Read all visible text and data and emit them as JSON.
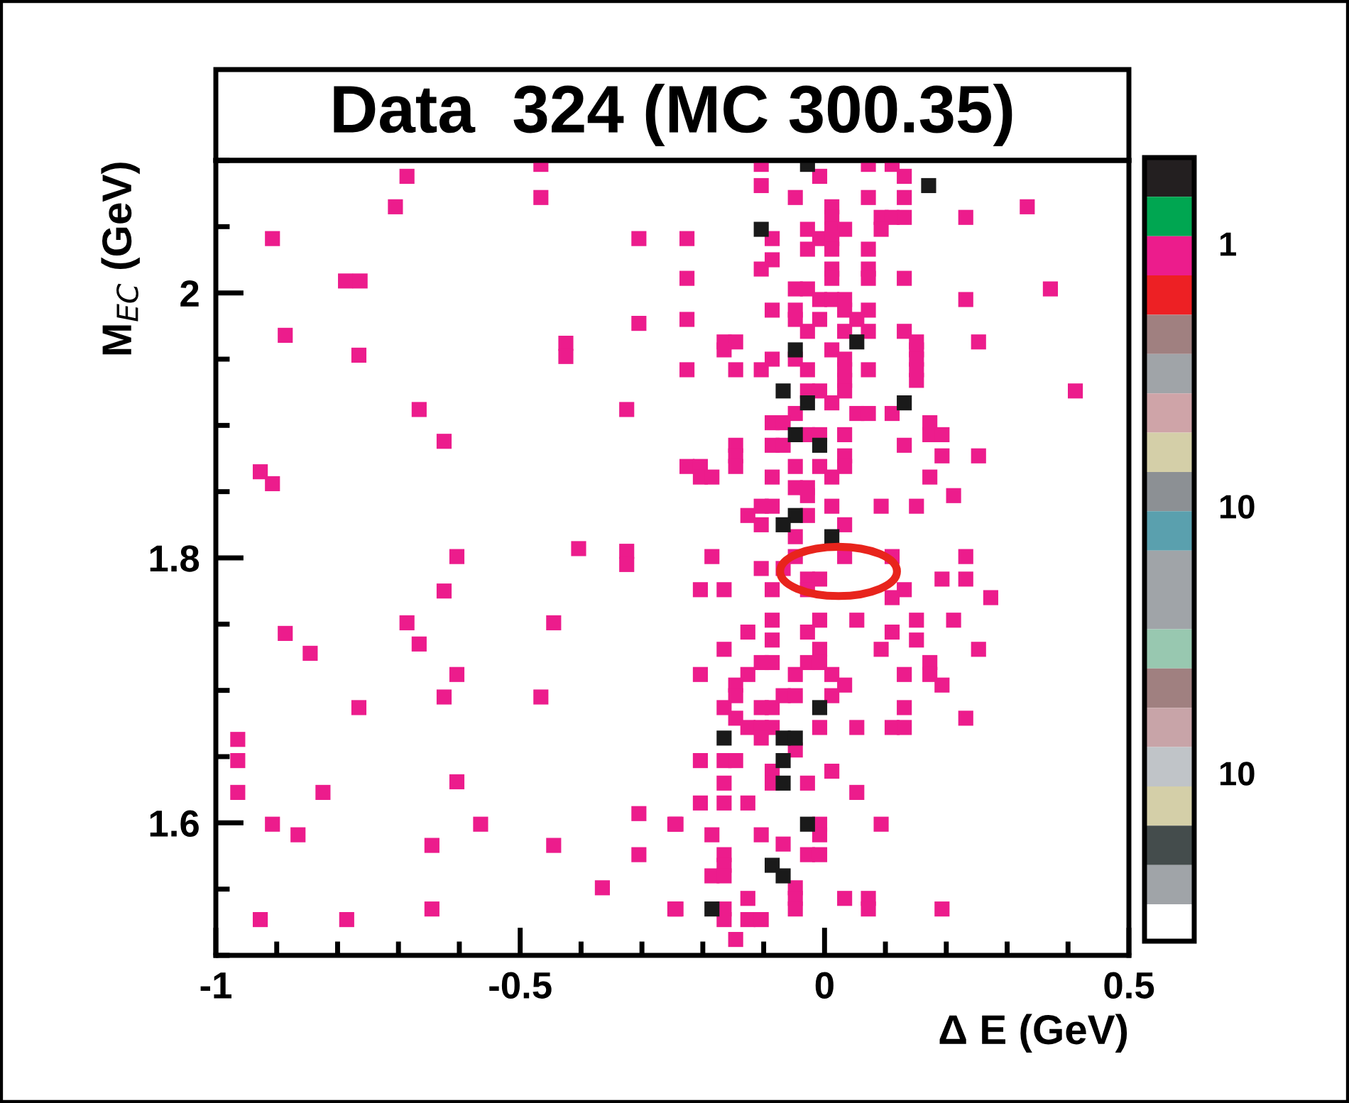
{
  "chart_data": {
    "type": "scatter",
    "title": "Data  324 (MC 300.35)",
    "xlabel": "Δ E (GeV)",
    "ylabel": "M$_{EC}$ (GeV)",
    "xlim": [
      -1,
      0.5
    ],
    "ylim": [
      1.5,
      2.1
    ],
    "xticks": [
      {
        "value": -1,
        "label": "-1"
      },
      {
        "value": -0.5,
        "label": "-0.5"
      },
      0,
      0.5
    ],
    "yticks": [
      1.6,
      1.8,
      {
        "value": 2.0,
        "label": "2"
      }
    ],
    "marker": "square",
    "grid": false,
    "legend": false,
    "annotations": [
      "1",
      "10",
      "10"
    ],
    "series": [
      {
        "color": "#ec1c8c",
        "x": [
          -0.686,
          -0.466,
          -0.466,
          -0.705,
          -0.907,
          -0.305,
          -0.787,
          -0.763,
          -0.886,
          -0.765,
          -0.425,
          -0.425,
          -0.305,
          -0.666,
          -0.325,
          -0.625,
          -0.927,
          -0.907,
          -0.604,
          -0.404,
          -0.325,
          -0.325,
          -0.625,
          -0.886,
          -0.686,
          -0.666,
          -0.445,
          -0.845,
          -0.604,
          -0.625,
          -0.466,
          -0.765,
          -0.964,
          -0.964,
          -0.964,
          -0.824,
          -0.604,
          -0.907,
          -0.865,
          -0.565,
          -0.645,
          -0.445,
          -0.305,
          -0.305,
          -0.246,
          -0.365,
          -0.927,
          -0.785,
          -0.645,
          -0.246,
          -0.104,
          0.072,
          0.111,
          -0.008,
          0.131,
          -0.104,
          -0.048,
          0.072,
          0.131,
          0.012,
          0.333,
          0.012,
          0.093,
          0.111,
          0.131,
          0.232,
          -0.028,
          0.012,
          0.033,
          0.093,
          -0.226,
          -0.086,
          -0.008,
          0.012,
          -0.028,
          0.012,
          0.072,
          -0.086,
          -0.104,
          0.012,
          0.072,
          -0.226,
          0.012,
          0.072,
          0.131,
          -0.048,
          -0.028,
          0.371,
          -0.008,
          0.012,
          0.033,
          0.232,
          -0.086,
          -0.048,
          0.033,
          0.072,
          -0.226,
          -0.048,
          -0.008,
          0.053,
          -0.028,
          0.033,
          0.072,
          0.131,
          -0.165,
          -0.146,
          0.151,
          0.253,
          -0.165,
          0.012,
          0.151,
          -0.086,
          -0.048,
          0.033,
          0.151,
          -0.226,
          -0.146,
          -0.104,
          -0.028,
          0.033,
          0.072,
          0.151,
          0.033,
          0.151,
          -0.028,
          -0.008,
          0.033,
          0.412,
          0.012,
          -0.048,
          0.053,
          0.072,
          0.111,
          -0.086,
          -0.068,
          0.173,
          -0.028,
          -0.008,
          0.033,
          0.173,
          0.193,
          -0.146,
          -0.086,
          -0.068,
          0.131,
          -0.146,
          0.033,
          0.193,
          0.253,
          -0.226,
          -0.204,
          -0.146,
          -0.048,
          -0.008,
          0.033,
          -0.204,
          -0.185,
          -0.086,
          0.012,
          0.173,
          -0.048,
          -0.028,
          -0.028,
          0.212,
          -0.104,
          -0.086,
          0.012,
          0.093,
          0.151,
          -0.126,
          -0.028,
          -0.104,
          0.033,
          -0.048,
          -0.185,
          -0.048,
          0.033,
          0.111,
          0.232,
          -0.104,
          -0.068,
          -0.028,
          -0.008,
          0.193,
          0.232,
          -0.204,
          -0.165,
          -0.086,
          -0.028,
          0.131,
          0.111,
          0.273,
          -0.086,
          -0.008,
          0.053,
          0.151,
          0.212,
          -0.126,
          -0.028,
          0.111,
          -0.086,
          0.151,
          -0.165,
          -0.008,
          0.093,
          0.253,
          -0.104,
          -0.086,
          -0.028,
          -0.008,
          0.173,
          -0.204,
          -0.126,
          -0.048,
          0.012,
          0.131,
          0.173,
          -0.146,
          0.033,
          0.193,
          -0.146,
          -0.068,
          -0.048,
          0.012,
          -0.165,
          -0.104,
          -0.086,
          0.131,
          -0.146,
          0.232,
          -0.126,
          -0.104,
          -0.086,
          -0.008,
          0.053,
          0.111,
          0.131,
          -0.104,
          -0.048,
          -0.204,
          -0.165,
          -0.146,
          -0.086,
          0.012,
          -0.165,
          -0.086,
          -0.028,
          0.053,
          -0.204,
          -0.165,
          -0.126,
          -0.244,
          -0.008,
          0.093,
          -0.185,
          -0.104,
          -0.008,
          -0.068,
          -0.165,
          -0.028,
          -0.008,
          -0.165,
          -0.185,
          -0.165,
          -0.048,
          -0.126,
          -0.048,
          0.033,
          0.072,
          -0.244,
          -0.165,
          -0.048,
          0.072,
          0.193,
          -0.165,
          -0.126,
          -0.104,
          -0.146
        ],
        "values": [
          2.088,
          2.097,
          2.072,
          2.065,
          2.041,
          2.041,
          2.009,
          2.009,
          1.968,
          1.953,
          1.962,
          1.952,
          1.977,
          1.912,
          1.912,
          1.888,
          1.865,
          1.856,
          1.801,
          1.807,
          1.805,
          1.795,
          1.775,
          1.743,
          1.751,
          1.735,
          1.751,
          1.728,
          1.712,
          1.695,
          1.695,
          1.687,
          1.663,
          1.647,
          1.623,
          1.623,
          1.631,
          1.599,
          1.591,
          1.599,
          1.583,
          1.583,
          1.607,
          1.576,
          1.599,
          1.551,
          1.527,
          1.527,
          1.535,
          1.535,
          2.097,
          2.097,
          2.097,
          2.088,
          2.088,
          2.081,
          2.072,
          2.072,
          2.072,
          2.065,
          2.065,
          2.057,
          2.057,
          2.057,
          2.057,
          2.057,
          2.048,
          2.048,
          2.048,
          2.048,
          2.041,
          2.041,
          2.041,
          2.041,
          2.033,
          2.033,
          2.033,
          2.025,
          2.018,
          2.018,
          2.018,
          2.011,
          2.011,
          2.011,
          2.011,
          2.003,
          2.003,
          2.003,
          1.995,
          1.995,
          1.995,
          1.995,
          1.987,
          1.987,
          1.987,
          1.987,
          1.98,
          1.98,
          1.98,
          1.98,
          1.971,
          1.971,
          1.971,
          1.971,
          1.963,
          1.963,
          1.963,
          1.963,
          1.957,
          1.957,
          1.957,
          1.95,
          1.95,
          1.95,
          1.95,
          1.942,
          1.942,
          1.942,
          1.942,
          1.942,
          1.942,
          1.942,
          1.934,
          1.934,
          1.926,
          1.926,
          1.926,
          1.926,
          1.917,
          1.909,
          1.909,
          1.909,
          1.909,
          1.902,
          1.902,
          1.902,
          1.893,
          1.893,
          1.893,
          1.893,
          1.893,
          1.885,
          1.885,
          1.885,
          1.885,
          1.877,
          1.877,
          1.877,
          1.877,
          1.869,
          1.869,
          1.869,
          1.869,
          1.869,
          1.869,
          1.861,
          1.861,
          1.861,
          1.861,
          1.861,
          1.853,
          1.853,
          1.847,
          1.847,
          1.839,
          1.839,
          1.839,
          1.839,
          1.839,
          1.832,
          1.832,
          1.825,
          1.825,
          1.816,
          1.801,
          1.801,
          1.801,
          1.801,
          1.801,
          1.792,
          1.792,
          1.784,
          1.784,
          1.784,
          1.784,
          1.776,
          1.776,
          1.776,
          1.776,
          1.776,
          1.77,
          1.77,
          1.753,
          1.753,
          1.753,
          1.753,
          1.753,
          1.744,
          1.744,
          1.744,
          1.738,
          1.738,
          1.731,
          1.731,
          1.731,
          1.731,
          1.721,
          1.721,
          1.721,
          1.721,
          1.721,
          1.712,
          1.712,
          1.712,
          1.712,
          1.712,
          1.712,
          1.704,
          1.704,
          1.704,
          1.696,
          1.696,
          1.696,
          1.696,
          1.687,
          1.687,
          1.687,
          1.687,
          1.679,
          1.679,
          1.672,
          1.672,
          1.672,
          1.672,
          1.672,
          1.672,
          1.672,
          1.664,
          1.655,
          1.647,
          1.647,
          1.647,
          1.639,
          1.639,
          1.63,
          1.63,
          1.63,
          1.623,
          1.615,
          1.615,
          1.615,
          1.599,
          1.599,
          1.599,
          1.591,
          1.591,
          1.591,
          1.584,
          1.576,
          1.576,
          1.576,
          1.568,
          1.56,
          1.56,
          1.551,
          1.543,
          1.543,
          1.543,
          1.543,
          1.535,
          1.535,
          1.535,
          1.535,
          1.535,
          1.527,
          1.527,
          1.527,
          1.512
        ]
      },
      {
        "color": "#1a1a1a",
        "x": [
          -0.028,
          0.171,
          -0.104,
          0.053,
          -0.048,
          -0.068,
          -0.028,
          0.131,
          -0.048,
          -0.008,
          -0.048,
          -0.068,
          0.012,
          -0.008,
          -0.165,
          -0.068,
          -0.048,
          -0.068,
          -0.068,
          -0.028,
          -0.086,
          -0.068,
          -0.185
        ],
        "values": [
          2.097,
          2.081,
          2.048,
          1.963,
          1.957,
          1.926,
          1.917,
          1.917,
          1.893,
          1.885,
          1.832,
          1.825,
          1.816,
          1.687,
          1.664,
          1.664,
          1.664,
          1.647,
          1.63,
          1.599,
          1.568,
          1.56,
          1.535
        ]
      }
    ]
  }
}
